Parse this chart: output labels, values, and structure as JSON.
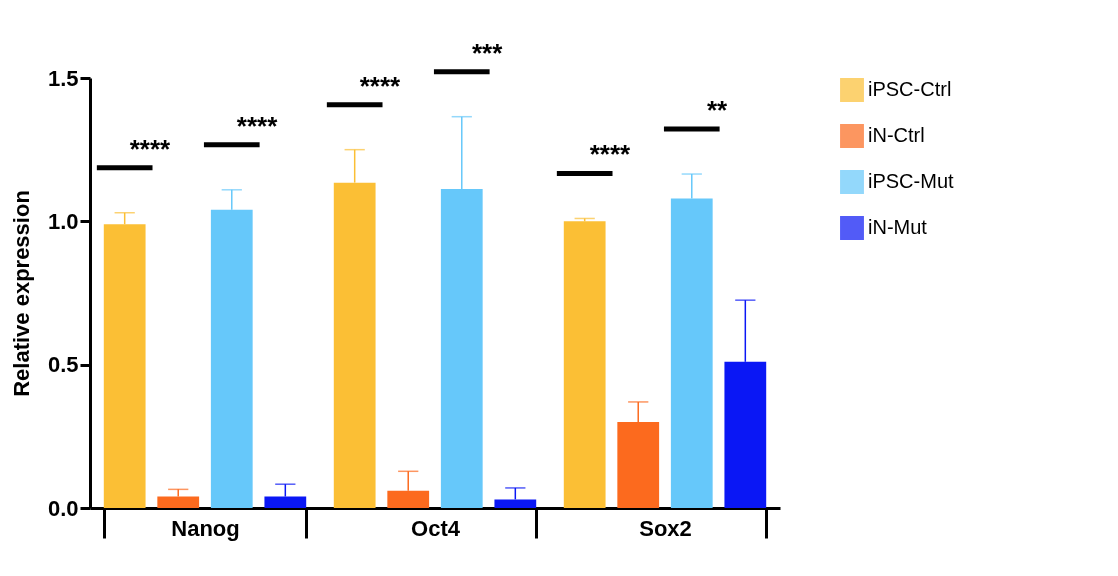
{
  "chart_data": {
    "type": "bar",
    "ylabel": "Relative expression",
    "categories": [
      "Nanog",
      "Oct4",
      "Sox2"
    ],
    "series": [
      {
        "name": "iPSC-Ctrl",
        "color": "#fbbf35",
        "values": [
          0.99,
          1.135,
          1.0
        ],
        "errors": [
          [
            0.99,
            1.03
          ],
          [
            1.135,
            1.25
          ],
          [
            1.0,
            1.01
          ]
        ]
      },
      {
        "name": "iN-Ctrl",
        "color": "#fc6a1e",
        "values": [
          0.04,
          0.06,
          0.3
        ],
        "errors": [
          [
            0.04,
            0.065
          ],
          [
            0.06,
            0.128
          ],
          [
            0.3,
            0.37
          ]
        ]
      },
      {
        "name": "iPSC-Mut",
        "color": "#66c8fa",
        "values": [
          1.04,
          1.113,
          1.08
        ],
        "errors": [
          [
            1.04,
            1.11
          ],
          [
            1.113,
            1.365
          ],
          [
            1.08,
            1.165
          ]
        ]
      },
      {
        "name": "iN-Mut",
        "color": "#0a17f5",
        "values": [
          0.04,
          0.03,
          0.51
        ],
        "errors": [
          [
            0.04,
            0.083
          ],
          [
            0.03,
            0.07
          ],
          [
            0.51,
            0.725
          ]
        ]
      }
    ],
    "ylim": [
      0,
      1.5
    ],
    "yticks": [
      {
        "value": 0,
        "label": "0.0"
      },
      0.5,
      {
        "value": 1,
        "label": "1.0"
      },
      1.5
    ],
    "grid": false,
    "legend": "top right",
    "annotations": [
      "****",
      "****",
      "****",
      "***",
      "****",
      "**"
    ]
  }
}
